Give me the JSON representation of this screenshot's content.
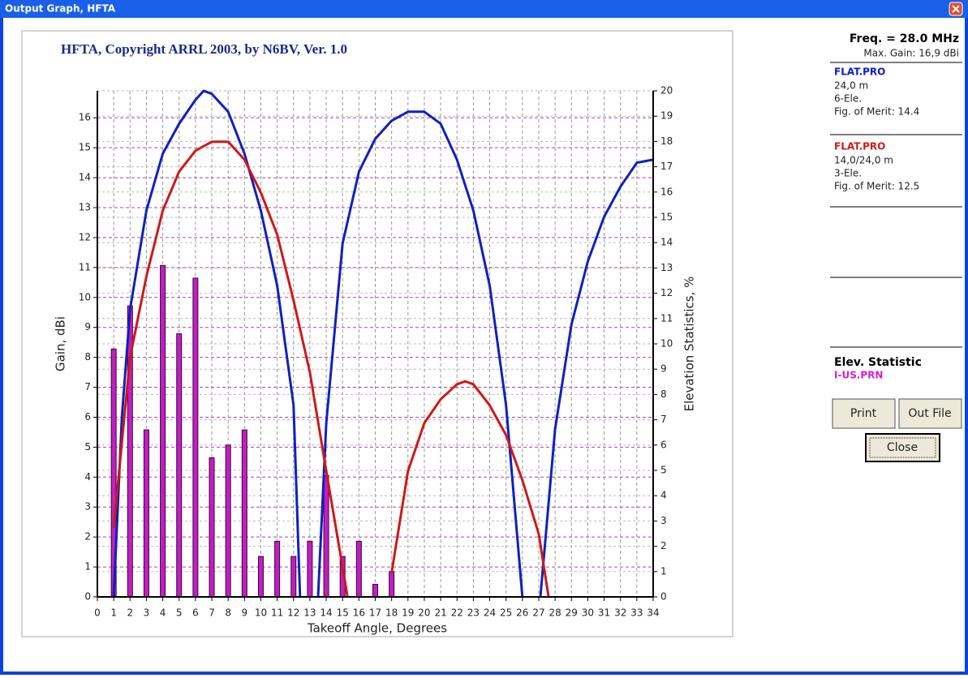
{
  "window": {
    "title": "Output Graph, HFTA"
  },
  "chart_data": {
    "type": "line",
    "title": "HFTA, Copyright ARRL 2003, by N6BV, Ver. 1.0",
    "x_label": "Takeoff Angle, Degrees",
    "y_label": "Gain, dBi",
    "y2_label": "Elevation Statistics, %",
    "xlim": [
      0,
      34
    ],
    "xticks": [
      0,
      1,
      2,
      3,
      4,
      5,
      6,
      7,
      8,
      9,
      10,
      11,
      12,
      13,
      14,
      15,
      16,
      17,
      18,
      19,
      20,
      21,
      22,
      23,
      24,
      25,
      26,
      27,
      28,
      29,
      30,
      31,
      32,
      33,
      34
    ],
    "ylim": [
      0,
      16.9
    ],
    "yticks": [
      0,
      1,
      2,
      3,
      4,
      5,
      6,
      7,
      8,
      9,
      10,
      11,
      12,
      13,
      14,
      15,
      16
    ],
    "y2lim": [
      0,
      20
    ],
    "y2ticks": [
      0,
      1,
      2,
      3,
      4,
      5,
      6,
      7,
      8,
      9,
      10,
      11,
      12,
      13,
      14,
      15,
      16,
      17,
      18,
      19,
      20
    ],
    "grid": true,
    "series": [
      {
        "name": "FLAT.PRO",
        "type": "line",
        "color": "#1020c0",
        "x": [
          1,
          1.5,
          2,
          3,
          4,
          5,
          6,
          6.5,
          7,
          8,
          9,
          10,
          11,
          12,
          12.4,
          null,
          13.5,
          14,
          15,
          16,
          17,
          18,
          19,
          20,
          21,
          22,
          23,
          24,
          25,
          26,
          null,
          27.1,
          28,
          29,
          30,
          31,
          32,
          33,
          34
        ],
        "values": [
          0,
          6,
          9.6,
          12.9,
          14.8,
          15.8,
          16.6,
          16.9,
          16.8,
          16.2,
          14.8,
          12.9,
          10.4,
          6.4,
          0,
          null,
          0,
          5.8,
          11.8,
          14.2,
          15.3,
          15.9,
          16.2,
          16.2,
          15.8,
          14.6,
          12.9,
          10.4,
          6.4,
          0,
          null,
          0,
          5.6,
          9.1,
          11.2,
          12.7,
          13.7,
          14.5,
          14.6
        ]
      },
      {
        "name": "FLAT.PRO",
        "type": "line",
        "color": "#d01818",
        "x": [
          1,
          2,
          3,
          4,
          5,
          6,
          7,
          8,
          9,
          10,
          11,
          12,
          13,
          14,
          15,
          15.3,
          null,
          18,
          19,
          20,
          21,
          22,
          22.5,
          23,
          24,
          25,
          26,
          27,
          27.6
        ],
        "values": [
          2.3,
          8.0,
          10.7,
          12.9,
          14.2,
          14.9,
          15.2,
          15.2,
          14.6,
          13.5,
          12.1,
          9.9,
          7.5,
          4.2,
          1.0,
          0,
          null,
          0.8,
          4.2,
          5.8,
          6.6,
          7.1,
          7.2,
          7.1,
          6.4,
          5.4,
          3.9,
          2.1,
          0
        ]
      },
      {
        "name": "I-US.PRN",
        "type": "bar",
        "color": "#c020c0",
        "axis": "y2",
        "x": [
          1,
          2,
          3,
          4,
          5,
          6,
          7,
          8,
          9,
          10,
          11,
          12,
          13,
          14,
          15,
          16,
          17,
          18
        ],
        "values": [
          9.8,
          11.5,
          6.6,
          13.1,
          10.4,
          12.6,
          5.5,
          6.0,
          6.6,
          1.6,
          2.2,
          1.6,
          2.2,
          4.8,
          1.6,
          2.2,
          0.5,
          1.0
        ]
      }
    ]
  },
  "side_panel": {
    "freq": "Freq. = 28.0 MHz",
    "max_gain": "Max. Gain: 16,9 dBi",
    "entries": [
      {
        "height": "24,0 m",
        "elements": "6-Ele.",
        "merit": "Fig. of Merit: 14.4"
      },
      {
        "height": "14,0/24,0 m",
        "elements": "3-Ele.",
        "merit": "Fig. of Merit: 12.5"
      }
    ],
    "elev_title": "Elev. Statistic"
  },
  "buttons": {
    "print": "Print",
    "out_file": "Out File",
    "close": "Close"
  }
}
